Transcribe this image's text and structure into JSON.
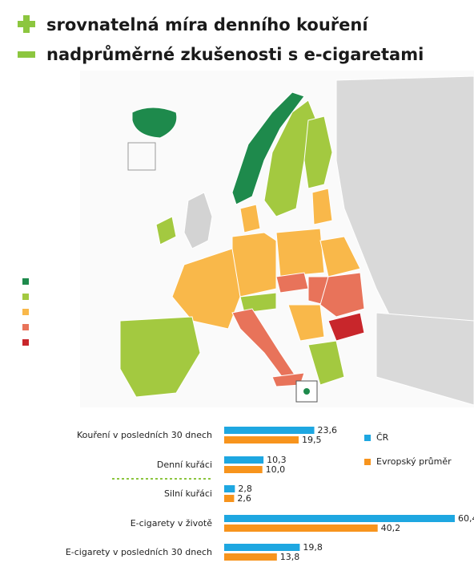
{
  "header": {
    "lines": [
      "srovnatelná míra denního kouření",
      "nadprůměrné zkušenosti s e-cigaretami"
    ]
  },
  "chart_data": {
    "type": "bar",
    "orientation": "horizontal",
    "categories": [
      "Kouření v posledních 30 dnech",
      "Denní kuřáci",
      "Silní kuřáci",
      "E-cigarety v životě",
      "E-cigarety v posledních 30 dnech"
    ],
    "series": [
      {
        "name": "ČR",
        "color": "#1ea7e1",
        "values": [
          23.6,
          10.3,
          2.8,
          60.4,
          19.8
        ],
        "value_labels": [
          "23,6",
          "10,3",
          "2,8",
          "60,4",
          "19,8"
        ]
      },
      {
        "name": "Evropský průměr",
        "color": "#f7941d",
        "values": [
          19.5,
          10.0,
          2.6,
          40.2,
          13.8
        ],
        "value_labels": [
          "19,5",
          "10,0",
          "2,6",
          "40,2",
          "13,8"
        ]
      }
    ]
  }
}
